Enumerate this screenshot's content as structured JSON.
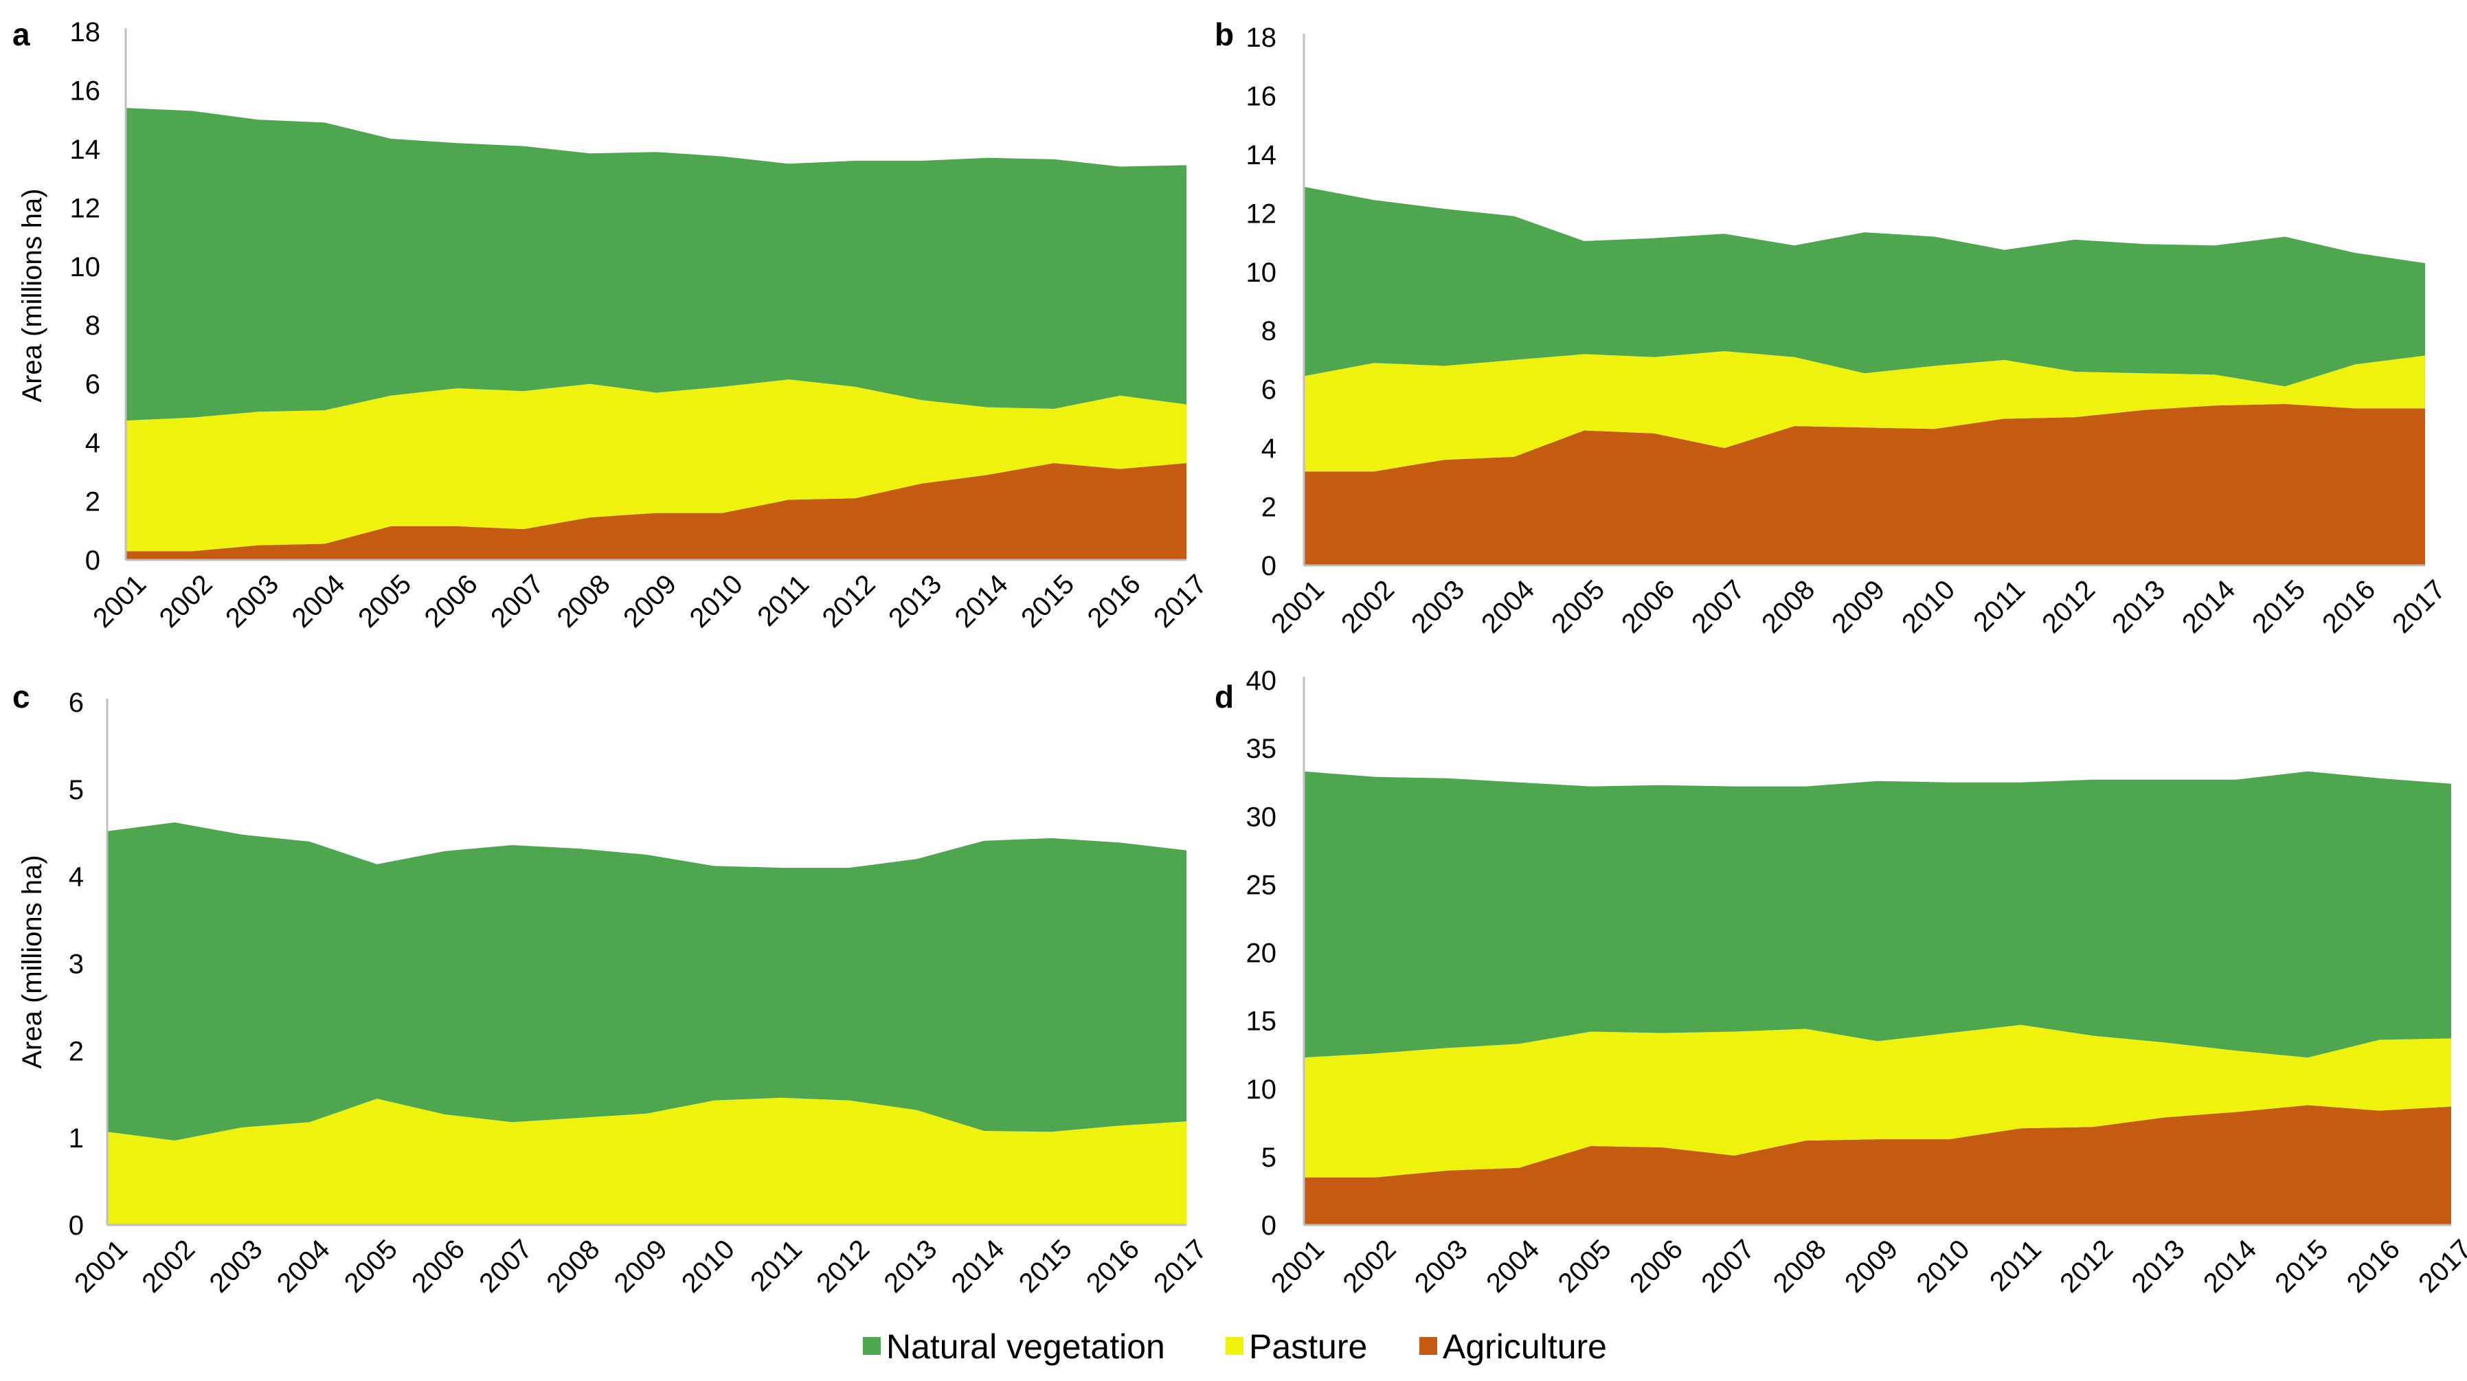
{
  "legend": [
    {
      "key": "natural",
      "label": "Natural vegetation",
      "color": "#4ea64e"
    },
    {
      "key": "pasture",
      "label": "Pasture",
      "color": "#eef20c"
    },
    {
      "key": "agriculture",
      "label": "Agriculture",
      "color": "#c55a11"
    }
  ],
  "chart_data": [
    {
      "type": "area",
      "stacked": true,
      "panel": "a",
      "ylabel": "Area (millions ha)",
      "ylim": [
        0,
        18
      ],
      "yticks": [
        0,
        2,
        4,
        6,
        8,
        10,
        12,
        14,
        16,
        18
      ],
      "x": [
        "2001",
        "2002",
        "2003",
        "2004",
        "2005",
        "2006",
        "2007",
        "2008",
        "2009",
        "2010",
        "2011",
        "2012",
        "2013",
        "2014",
        "2015",
        "2016",
        "2017"
      ],
      "series": [
        {
          "name": "Agriculture",
          "key": "agriculture",
          "values": [
            0.3,
            0.3,
            0.5,
            0.55,
            1.15,
            1.15,
            1.05,
            1.45,
            1.6,
            1.6,
            2.05,
            2.1,
            2.6,
            2.9,
            3.3,
            3.1,
            3.3
          ]
        },
        {
          "name": "Pasture",
          "key": "pasture",
          "values": [
            4.45,
            4.55,
            4.55,
            4.55,
            4.45,
            4.7,
            4.7,
            4.55,
            4.1,
            4.3,
            4.1,
            3.8,
            2.85,
            2.3,
            1.85,
            2.5,
            2.0
          ]
        },
        {
          "name": "Natural vegetation",
          "key": "natural",
          "values": [
            10.65,
            10.45,
            9.95,
            9.8,
            8.75,
            8.35,
            8.35,
            7.85,
            8.2,
            7.85,
            7.35,
            7.7,
            8.15,
            8.5,
            8.5,
            7.8,
            8.15
          ]
        }
      ]
    },
    {
      "type": "area",
      "stacked": true,
      "panel": "b",
      "ylabel": "",
      "ylim": [
        0,
        18
      ],
      "yticks": [
        0,
        2,
        4,
        6,
        8,
        10,
        12,
        14,
        16,
        18
      ],
      "x": [
        "2001",
        "2002",
        "2003",
        "2004",
        "2005",
        "2006",
        "2007",
        "2008",
        "2009",
        "2010",
        "2011",
        "2012",
        "2013",
        "2014",
        "2015",
        "2016",
        "2017"
      ],
      "series": [
        {
          "name": "Agriculture",
          "key": "agriculture",
          "values": [
            3.2,
            3.2,
            3.6,
            3.7,
            4.6,
            4.5,
            4.0,
            4.75,
            4.7,
            4.65,
            5.0,
            5.05,
            5.3,
            5.45,
            5.5,
            5.35,
            5.35
          ]
        },
        {
          "name": "Pasture",
          "key": "pasture",
          "values": [
            3.25,
            3.7,
            3.2,
            3.3,
            2.6,
            2.6,
            3.3,
            2.35,
            1.85,
            2.15,
            2.0,
            1.55,
            1.25,
            1.05,
            0.6,
            1.5,
            1.8
          ]
        },
        {
          "name": "Natural vegetation",
          "key": "natural",
          "values": [
            6.45,
            5.55,
            5.35,
            4.9,
            3.85,
            4.05,
            4.0,
            3.8,
            4.8,
            4.4,
            3.75,
            4.5,
            4.4,
            4.4,
            5.1,
            3.8,
            3.15
          ]
        }
      ]
    },
    {
      "type": "area",
      "stacked": true,
      "panel": "c",
      "ylabel": "Area (millions ha)",
      "ylim": [
        0,
        6
      ],
      "yticks": [
        0,
        1,
        2,
        3,
        4,
        5,
        6
      ],
      "x": [
        "2001",
        "2002",
        "2003",
        "2004",
        "2005",
        "2006",
        "2007",
        "2008",
        "2009",
        "2010",
        "2011",
        "2012",
        "2013",
        "2014",
        "2015",
        "2016",
        "2017"
      ],
      "series": [
        {
          "name": "Pasture",
          "key": "pasture",
          "values": [
            1.07,
            0.97,
            1.12,
            1.18,
            1.45,
            1.27,
            1.18,
            1.23,
            1.28,
            1.43,
            1.46,
            1.43,
            1.32,
            1.08,
            1.07,
            1.14,
            1.19
          ]
        },
        {
          "name": "Natural vegetation",
          "key": "natural",
          "values": [
            3.45,
            3.65,
            3.36,
            3.22,
            2.69,
            3.02,
            3.18,
            3.09,
            2.97,
            2.69,
            2.64,
            2.67,
            2.88,
            3.33,
            3.37,
            3.25,
            3.11
          ]
        }
      ]
    },
    {
      "type": "area",
      "stacked": true,
      "panel": "d",
      "ylabel": "",
      "ylim": [
        0,
        40
      ],
      "yticks": [
        0,
        5,
        10,
        15,
        20,
        25,
        30,
        35,
        40
      ],
      "x": [
        "2001",
        "2002",
        "2003",
        "2004",
        "2005",
        "2006",
        "2007",
        "2008",
        "2009",
        "2010",
        "2011",
        "2012",
        "2013",
        "2014",
        "2015",
        "2016",
        "2017"
      ],
      "series": [
        {
          "name": "Agriculture",
          "key": "agriculture",
          "values": [
            3.5,
            3.5,
            4.0,
            4.2,
            5.8,
            5.7,
            5.1,
            6.2,
            6.3,
            6.3,
            7.1,
            7.2,
            7.9,
            8.3,
            8.8,
            8.4,
            8.7
          ]
        },
        {
          "name": "Pasture",
          "key": "pasture",
          "values": [
            8.8,
            9.1,
            9.0,
            9.1,
            8.4,
            8.4,
            9.1,
            8.2,
            7.2,
            7.8,
            7.6,
            6.7,
            5.5,
            4.5,
            3.5,
            5.2,
            5.0
          ]
        },
        {
          "name": "Natural vegetation",
          "key": "natural",
          "values": [
            21.0,
            20.3,
            19.8,
            19.2,
            18.0,
            18.2,
            18.0,
            17.8,
            19.1,
            18.4,
            17.8,
            18.8,
            19.3,
            19.9,
            21.0,
            19.2,
            18.7
          ]
        }
      ]
    }
  ]
}
